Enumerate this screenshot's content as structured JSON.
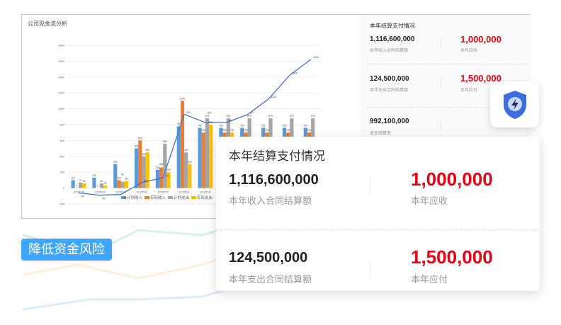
{
  "chart": {
    "title": "公司现金流分析",
    "chart_data": {
      "type": "bar",
      "categories": [
        "2019年1月",
        "2019年2月",
        "2019年3月",
        "2019年4月",
        "2019年5月",
        "2019年6月",
        "2019年7月",
        "2019年8月",
        "2019年9月",
        "2019年10月",
        "2019年11月",
        "2019年12月"
      ],
      "ylim": [
        -200,
        1800
      ],
      "yticks": [
        -200,
        0,
        200,
        400,
        600,
        800,
        1000,
        1200,
        1400,
        1600,
        1800
      ],
      "grid": true,
      "legend": "bottom",
      "series": [
        {
          "name": "计划收入",
          "type": "bar",
          "color": "#5b9bd5",
          "values": [
            100,
            130,
            300,
            500,
            230,
            780,
            760,
            760,
            760,
            760,
            760,
            760
          ]
        },
        {
          "name": "实际收入",
          "type": "bar",
          "color": "#ed7d31",
          "values": [
            0,
            0,
            100,
            600,
            260,
            1100,
            700,
            700,
            700,
            700,
            700,
            700
          ]
        },
        {
          "name": "计划支出",
          "type": "bar",
          "color": "#a5a5a5",
          "values": [
            70,
            60,
            80,
            400,
            560,
            450,
            879,
            879,
            879,
            879,
            879,
            879
          ]
        },
        {
          "name": "实际支出",
          "type": "bar",
          "color": "#ffc000",
          "values": [
            60,
            30,
            90,
            450,
            200,
            300,
            800,
            700,
            600,
            600,
            600,
            600
          ]
        },
        {
          "type": "line",
          "color": "#4472c4",
          "values": [
            -60,
            -90,
            -80,
            70,
            130,
            930,
            827,
            827,
            927,
            1126,
            1425,
            1624
          ]
        }
      ]
    }
  },
  "panel": {
    "title": "本年结算支付情况",
    "rows": [
      {
        "num": "1,116,600,000",
        "label": "本年收入合同结算额",
        "red": "1,000,000",
        "red_label": "本年应收"
      },
      {
        "num": "124,500,000",
        "label": "本年支出合同结算额",
        "red": "1,500,000",
        "red_label": "本年应付"
      },
      {
        "num": "992,100,000",
        "label": "收支结算差"
      }
    ]
  },
  "card": {
    "title": "本年结算支付情况",
    "rows": [
      {
        "num": "1,116,600,000",
        "label": "本年收入合同结算额",
        "red": "1,000,000",
        "red_label": "本年应收"
      },
      {
        "num": "124,500,000",
        "label": "本年支出合同结算额",
        "red": "1,500,000",
        "red_label": "本年应付"
      }
    ]
  },
  "tag": "降低资金风险",
  "icons": {
    "shield": "shield-lightning-icon"
  },
  "colors": {
    "accent": "#3ea6ff",
    "red": "#e60012",
    "shield": "#3b6fe0"
  }
}
